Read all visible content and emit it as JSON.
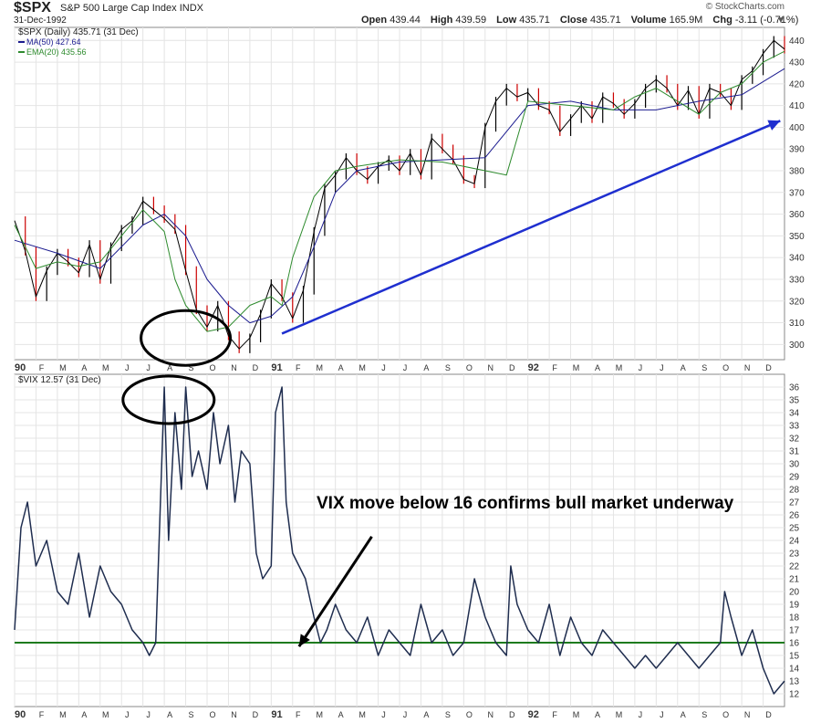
{
  "header": {
    "symbol": "$SPX",
    "name": "S&P 500 Large Cap Index",
    "exchange": "INDX",
    "date": "31-Dec-1992",
    "watermark": "© StockCharts.com",
    "open_label": "Open",
    "open": "439.44",
    "high_label": "High",
    "high": "439.59",
    "low_label": "Low",
    "low": "435.71",
    "close_label": "Close",
    "close": "435.71",
    "volume_label": "Volume",
    "volume": "165.9M",
    "chg_label": "Chg",
    "chg": "-3.11 (-0.71%)"
  },
  "colors": {
    "price_up": "#000000",
    "price_down": "#cc0000",
    "ma50": "#1b1b8f",
    "ema20": "#2e8b2e",
    "vix": "#1f2d4f",
    "vix_line": "#1e7b1e",
    "trend_arrow": "#1f2fcf",
    "grid": "#e4e4e4"
  },
  "chart_data": [
    {
      "type": "line",
      "title": "$SPX (Daily) 435.71 (31 Dec)",
      "legend": [
        {
          "name": "MA(50) 427.64",
          "color": "#1b1b8f"
        },
        {
          "name": "EMA(20) 435.56",
          "color": "#2e8b2e"
        }
      ],
      "x_tick_labels": [
        "90",
        "F",
        "M",
        "A",
        "M",
        "J",
        "J",
        "A",
        "S",
        "O",
        "N",
        "D",
        "91",
        "F",
        "M",
        "A",
        "M",
        "J",
        "J",
        "A",
        "S",
        "O",
        "N",
        "D",
        "92",
        "F",
        "M",
        "A",
        "M",
        "J",
        "J",
        "A",
        "S",
        "O",
        "N",
        "D"
      ],
      "ylim": [
        293,
        446
      ],
      "y_ticks": [
        300,
        310,
        320,
        330,
        340,
        350,
        360,
        370,
        380,
        390,
        400,
        410,
        420,
        430,
        440
      ],
      "series": [
        {
          "name": "$SPX",
          "x": [
            0,
            0.5,
            1,
            1.5,
            2,
            2.5,
            3,
            3.5,
            4,
            4.5,
            5,
            5.5,
            6,
            6.5,
            7,
            7.5,
            8,
            8.5,
            9,
            9.5,
            10,
            10.5,
            11,
            11.5,
            12,
            12.5,
            13,
            13.5,
            14,
            14.5,
            15,
            15.5,
            16,
            16.5,
            17,
            17.5,
            18,
            18.5,
            19,
            19.5,
            20,
            20.5,
            21,
            21.5,
            22,
            22.5,
            23,
            23.5,
            24,
            24.5,
            25,
            25.5,
            26,
            26.5,
            27,
            27.5,
            28,
            28.5,
            29,
            29.5,
            30,
            30.5,
            31,
            31.5,
            32,
            32.5,
            33,
            33.5,
            34,
            34.5,
            35,
            35.5,
            36
          ],
          "values": [
            357,
            343,
            322,
            334,
            342,
            338,
            333,
            346,
            330,
            345,
            353,
            357,
            366,
            362,
            358,
            353,
            334,
            316,
            308,
            318,
            304,
            298,
            303,
            314,
            328,
            322,
            312,
            325,
            352,
            372,
            378,
            386,
            380,
            376,
            382,
            385,
            380,
            388,
            378,
            395,
            390,
            385,
            376,
            374,
            400,
            412,
            418,
            414,
            416,
            410,
            408,
            398,
            404,
            410,
            404,
            414,
            411,
            406,
            411,
            418,
            422,
            418,
            410,
            417,
            406,
            418,
            416,
            410,
            422,
            426,
            434,
            440,
            436
          ],
          "annotations": [
            {
              "type": "arrow",
              "from": [
                12.5,
                305
              ],
              "to": [
                35.8,
                403
              ]
            },
            {
              "type": "ellipse",
              "at": [
                8,
                303
              ]
            }
          ]
        },
        {
          "name": "MA(50)",
          "x": [
            0,
            2,
            4,
            5,
            6,
            7,
            8,
            9,
            10,
            11,
            12,
            13,
            14,
            15,
            16,
            18,
            20,
            22,
            24,
            26,
            28,
            30,
            32,
            34,
            36
          ],
          "values": [
            348,
            342,
            335,
            345,
            355,
            360,
            350,
            330,
            318,
            310,
            313,
            322,
            345,
            370,
            380,
            384,
            385,
            386,
            410,
            412,
            408,
            408,
            412,
            415,
            427
          ]
        },
        {
          "name": "EMA(20)",
          "x": [
            0,
            1,
            2,
            3,
            4,
            5,
            6,
            7,
            7.5,
            8,
            9,
            10,
            11,
            12,
            12.5,
            13,
            14,
            15,
            16,
            18,
            20,
            22,
            23,
            24,
            26,
            28,
            29,
            30,
            31,
            32,
            33,
            34,
            35,
            36
          ],
          "values": [
            355,
            335,
            338,
            336,
            338,
            350,
            362,
            352,
            330,
            318,
            306,
            308,
            318,
            322,
            318,
            340,
            368,
            380,
            382,
            385,
            384,
            380,
            378,
            412,
            410,
            408,
            414,
            418,
            412,
            406,
            416,
            420,
            430,
            435
          ]
        }
      ]
    },
    {
      "type": "line",
      "title": "$VIX 12.57 (31 Dec)",
      "x_tick_labels": [
        "90",
        "F",
        "M",
        "A",
        "M",
        "J",
        "J",
        "A",
        "S",
        "O",
        "N",
        "D",
        "91",
        "F",
        "M",
        "A",
        "M",
        "J",
        "J",
        "A",
        "S",
        "O",
        "N",
        "D",
        "92",
        "F",
        "M",
        "A",
        "M",
        "J",
        "J",
        "A",
        "S",
        "O",
        "N",
        "D"
      ],
      "ylim": [
        11,
        37
      ],
      "y_ticks": [
        12,
        13,
        14,
        15,
        16,
        17,
        18,
        19,
        20,
        21,
        22,
        23,
        24,
        25,
        26,
        27,
        28,
        29,
        30,
        31,
        32,
        33,
        34,
        35,
        36
      ],
      "series": [
        {
          "name": "$VIX",
          "x": [
            0,
            0.3,
            0.6,
            1,
            1.5,
            2,
            2.5,
            3,
            3.5,
            4,
            4.5,
            5,
            5.5,
            6,
            6.3,
            6.6,
            7,
            7.2,
            7.5,
            7.8,
            8,
            8.3,
            8.6,
            9,
            9.3,
            9.6,
            10,
            10.3,
            10.6,
            11,
            11.3,
            11.6,
            12,
            12.2,
            12.5,
            12.7,
            13,
            13.3,
            13.6,
            14,
            14.3,
            14.6,
            15,
            15.5,
            16,
            16.5,
            17,
            17.5,
            18,
            18.5,
            19,
            19.5,
            20,
            20.5,
            21,
            21.5,
            22,
            22.5,
            23,
            23.2,
            23.5,
            24,
            24.5,
            25,
            25.5,
            26,
            26.5,
            27,
            27.5,
            28,
            28.5,
            29,
            29.5,
            30,
            30.5,
            31,
            31.5,
            32,
            32.5,
            33,
            33.2,
            33.5,
            34,
            34.5,
            35,
            35.5,
            36
          ],
          "values": [
            17,
            25,
            27,
            22,
            24,
            20,
            19,
            23,
            18,
            22,
            20,
            19,
            17,
            16,
            15,
            16,
            36,
            24,
            34,
            28,
            36,
            29,
            31,
            28,
            34,
            30,
            33,
            27,
            31,
            30,
            23,
            21,
            22,
            34,
            36,
            27,
            23,
            22,
            21,
            18,
            16,
            17,
            19,
            17,
            16,
            18,
            15,
            17,
            16,
            15,
            19,
            16,
            17,
            15,
            16,
            21,
            18,
            16,
            15,
            22,
            19,
            17,
            16,
            19,
            15,
            18,
            16,
            15,
            17,
            16,
            15,
            14,
            15,
            14,
            15,
            16,
            15,
            14,
            15,
            16,
            20,
            18,
            15,
            17,
            14,
            12,
            13
          ]
        }
      ],
      "reference_line": {
        "y": 16,
        "label": "16"
      },
      "annotation_text": "VIX move below 16 confirms bull market underway",
      "annotations": [
        {
          "type": "arrow",
          "from": [
            16.7,
            24.3
          ],
          "to": [
            13.3,
            15.7
          ]
        },
        {
          "type": "ellipse",
          "at": [
            7.2,
            35
          ]
        }
      ]
    }
  ]
}
